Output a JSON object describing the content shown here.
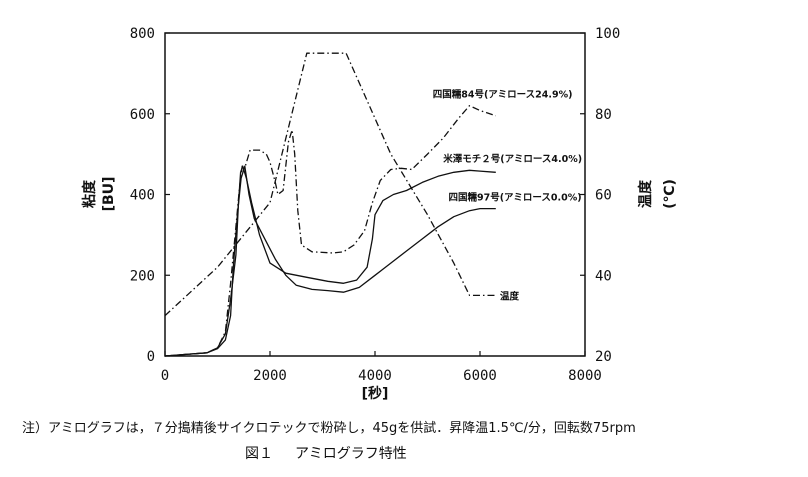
{
  "chart_data": {
    "type": "line",
    "xlabel": "[秒]",
    "ylabel_left": "粘度",
    "ylabel_left_unit": "[BU]",
    "ylabel_right": "温度",
    "ylabel_right_unit": "(℃)",
    "xlim": [
      0,
      8000
    ],
    "ylim_left": [
      0,
      800
    ],
    "ylim_right": [
      20,
      100
    ],
    "x_ticks": [
      "0",
      "2000",
      "4000",
      "6000",
      "8000"
    ],
    "y_left_ticks": [
      "0",
      "200",
      "400",
      "600",
      "800"
    ],
    "y_right_ticks": [
      "20",
      "40",
      "60",
      "80",
      "100"
    ],
    "grid": false,
    "series": [
      {
        "name": "四国糯84号(アミロース24.9%)",
        "axis": "left",
        "style": "dashdot",
        "points": [
          [
            0,
            0
          ],
          [
            400,
            4
          ],
          [
            800,
            8
          ],
          [
            1000,
            20
          ],
          [
            1150,
            60
          ],
          [
            1250,
            180
          ],
          [
            1350,
            320
          ],
          [
            1420,
            420
          ],
          [
            1470,
            470
          ],
          [
            1530,
            470
          ],
          [
            1620,
            510
          ],
          [
            1800,
            510
          ],
          [
            1930,
            500
          ],
          [
            2000,
            480
          ],
          [
            2100,
            430
          ],
          [
            2150,
            400
          ],
          [
            2250,
            410
          ],
          [
            2350,
            530
          ],
          [
            2420,
            560
          ],
          [
            2470,
            500
          ],
          [
            2530,
            360
          ],
          [
            2600,
            275
          ],
          [
            2800,
            258
          ],
          [
            3200,
            255
          ],
          [
            3400,
            258
          ],
          [
            3600,
            275
          ],
          [
            3800,
            310
          ],
          [
            3950,
            380
          ],
          [
            4100,
            435
          ],
          [
            4300,
            462
          ],
          [
            4500,
            465
          ],
          [
            4700,
            462
          ],
          [
            5000,
            500
          ],
          [
            5300,
            540
          ],
          [
            5600,
            590
          ],
          [
            5800,
            620
          ],
          [
            6000,
            608
          ],
          [
            6300,
            595
          ]
        ]
      },
      {
        "name": "米澤モチ２号(アミロース4.0%)",
        "axis": "left",
        "style": "solid",
        "points": [
          [
            0,
            0
          ],
          [
            400,
            4
          ],
          [
            800,
            8
          ],
          [
            1000,
            20
          ],
          [
            1150,
            55
          ],
          [
            1250,
            140
          ],
          [
            1350,
            250
          ],
          [
            1400,
            380
          ],
          [
            1440,
            455
          ],
          [
            1480,
            470
          ],
          [
            1550,
            440
          ],
          [
            1650,
            380
          ],
          [
            1800,
            300
          ],
          [
            2000,
            230
          ],
          [
            2300,
            205
          ],
          [
            2700,
            195
          ],
          [
            3100,
            185
          ],
          [
            3400,
            180
          ],
          [
            3650,
            188
          ],
          [
            3850,
            220
          ],
          [
            3950,
            290
          ],
          [
            4000,
            350
          ],
          [
            4150,
            385
          ],
          [
            4350,
            400
          ],
          [
            4600,
            410
          ],
          [
            4900,
            430
          ],
          [
            5200,
            445
          ],
          [
            5500,
            455
          ],
          [
            5800,
            460
          ],
          [
            6000,
            458
          ],
          [
            6300,
            455
          ]
        ]
      },
      {
        "name": "四国糯97号(アミロース0.0%)",
        "axis": "left",
        "style": "solid",
        "points": [
          [
            0,
            0
          ],
          [
            400,
            4
          ],
          [
            800,
            8
          ],
          [
            1000,
            18
          ],
          [
            1150,
            40
          ],
          [
            1250,
            100
          ],
          [
            1300,
            220
          ],
          [
            1380,
            350
          ],
          [
            1450,
            440
          ],
          [
            1520,
            470
          ],
          [
            1600,
            400
          ],
          [
            1700,
            340
          ],
          [
            1900,
            290
          ],
          [
            2100,
            240
          ],
          [
            2300,
            200
          ],
          [
            2500,
            175
          ],
          [
            2800,
            165
          ],
          [
            3100,
            162
          ],
          [
            3400,
            158
          ],
          [
            3700,
            170
          ],
          [
            4000,
            200
          ],
          [
            4300,
            230
          ],
          [
            4600,
            260
          ],
          [
            4900,
            290
          ],
          [
            5200,
            320
          ],
          [
            5500,
            345
          ],
          [
            5800,
            360
          ],
          [
            6000,
            365
          ],
          [
            6300,
            365
          ]
        ]
      },
      {
        "name": "温度",
        "axis": "right",
        "style": "dashdot",
        "points": [
          [
            0,
            30
          ],
          [
            1000,
            42
          ],
          [
            2000,
            58
          ],
          [
            2700,
            95
          ],
          [
            3450,
            95
          ],
          [
            4300,
            70
          ],
          [
            5000,
            55
          ],
          [
            5500,
            43
          ],
          [
            5800,
            35
          ],
          [
            6300,
            35
          ]
        ]
      }
    ],
    "annotations": [
      {
        "text": "四国糯84号(アミロース24.9%)",
        "x": 5100,
        "y": 650,
        "axis": "left"
      },
      {
        "text": "米澤モチ２号(アミロース4.0%)",
        "x": 5300,
        "y": 490,
        "axis": "left"
      },
      {
        "text": "四国糯97号(アミロース0.0%)",
        "x": 5400,
        "y": 395,
        "axis": "left"
      },
      {
        "text": "温度",
        "x": 6380,
        "y": 35,
        "axis": "right"
      }
    ]
  },
  "note": "注）アミログラフは，７分搗精後サイクロテックで粉砕し，45gを供試．昇降温1.5℃/分，回転数75rpm",
  "caption": {
    "number": "図１",
    "title": "アミログラフ特性"
  }
}
